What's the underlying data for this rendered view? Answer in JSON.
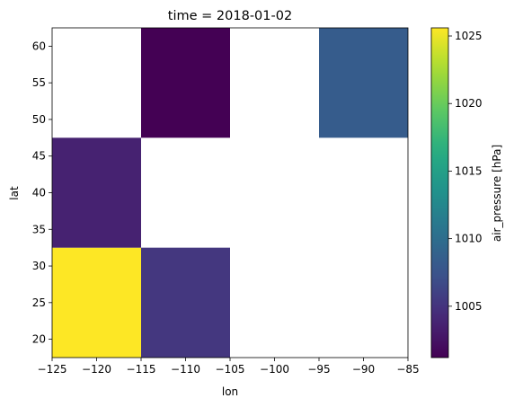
{
  "chart_data": {
    "type": "heatmap",
    "title": "time = 2018-01-02",
    "xlabel": "lon",
    "ylabel": "lat",
    "xlim": [
      -125,
      -85
    ],
    "ylim": [
      17.5,
      62.5
    ],
    "x_ticks": [
      -125,
      -120,
      -115,
      -110,
      -105,
      -100,
      -95,
      -90,
      -85
    ],
    "x_tick_labels": [
      "−125",
      "−120",
      "−115",
      "−110",
      "−105",
      "−100",
      "−95",
      "−90",
      "−85"
    ],
    "y_ticks": [
      20,
      25,
      30,
      35,
      40,
      45,
      50,
      55,
      60
    ],
    "y_tick_labels": [
      "20",
      "25",
      "30",
      "35",
      "40",
      "45",
      "50",
      "55",
      "60"
    ],
    "cell_x_edges": [
      -125,
      -115,
      -105,
      -95,
      -85
    ],
    "cell_y_edges": [
      17.5,
      32.5,
      47.5,
      62.5
    ],
    "z": [
      [
        1025.6,
        1005.2,
        null,
        null
      ],
      [
        1003.6,
        null,
        null,
        null
      ],
      [
        null,
        1001.2,
        null,
        1008.3
      ]
    ],
    "missing_color": "#ffffff",
    "colorbar": {
      "label": "air_pressure [hPa]",
      "vmin": 1001.2,
      "vmax": 1025.6,
      "colormap": "viridis",
      "ticks": [
        1005,
        1010,
        1015,
        1020,
        1025
      ],
      "tick_labels": [
        "1005",
        "1010",
        "1015",
        "1020",
        "1025"
      ]
    },
    "grid": false
  }
}
